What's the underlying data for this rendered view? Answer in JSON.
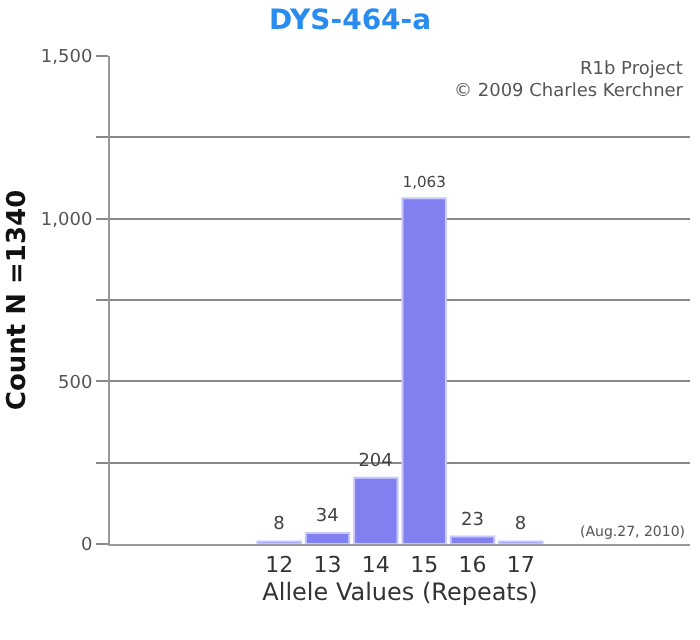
{
  "chart_data": {
    "type": "bar",
    "title": "DYS-464-a",
    "xlabel": "Allele Values (Repeats)",
    "ylabel": "Count N =1340",
    "categories": [
      null,
      null,
      null,
      "12",
      "13",
      "14",
      "15",
      "16",
      "17",
      null,
      null,
      null
    ],
    "values": [
      null,
      null,
      null,
      8,
      34,
      204,
      1063,
      23,
      8,
      null,
      null,
      null
    ],
    "value_labels": [
      null,
      null,
      null,
      "8",
      "34",
      "204",
      "1,063",
      "23",
      "8",
      null,
      null,
      null
    ],
    "color": "#8080f0",
    "grid": "y",
    "ylim": [
      0,
      1500
    ],
    "yticks": [
      0,
      {
        "value": 250,
        "label": null
      },
      {
        "value": 500,
        "label": "500"
      },
      {
        "value": 750,
        "label": null
      },
      {
        "value": 1000,
        "label": "1,000"
      },
      {
        "value": 1250,
        "label": null
      },
      {
        "value": 1500,
        "label": "1,500"
      }
    ],
    "annotations": [
      "R1b Project",
      "© 2009 Charles Kerchner",
      "(Aug.27, 2010)"
    ]
  }
}
